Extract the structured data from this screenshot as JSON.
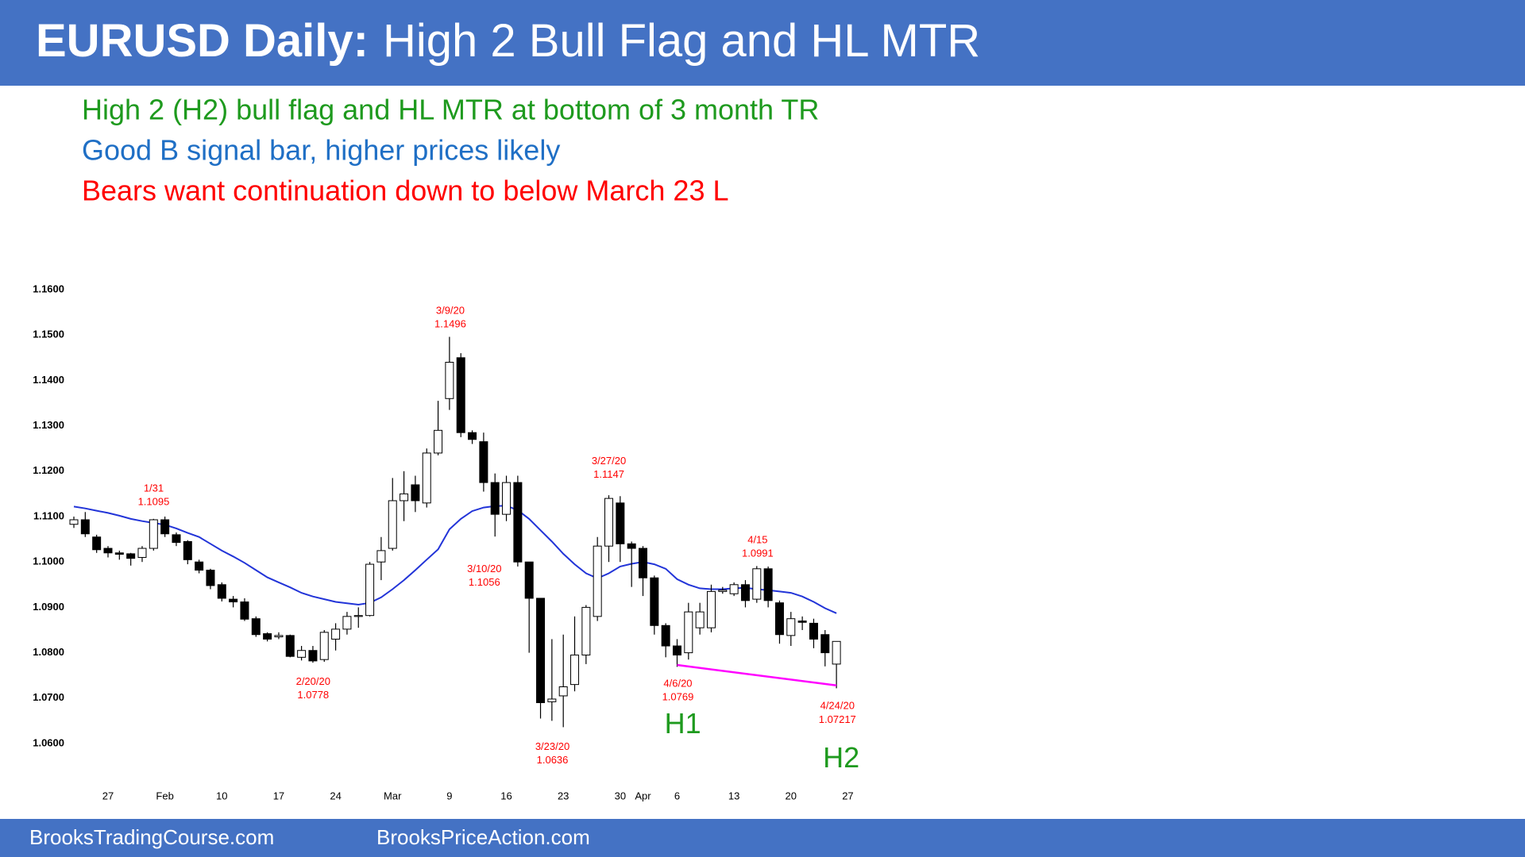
{
  "header": {
    "title_bold": "EURUSD Daily:",
    "title_rest": "High 2 Bull Flag and HL MTR"
  },
  "notes": [
    {
      "text": "High 2 (H2) bull flag and HL MTR at bottom of 3 month TR",
      "color": "#1e9a1e"
    },
    {
      "text": "Good B signal bar, higher prices likely",
      "color": "#1f6fc5"
    },
    {
      "text": "Bears want continuation down to below March 23 L",
      "color": "#ff0000"
    }
  ],
  "footer": [
    "BrooksTradingCourse.com",
    "BrooksPriceAction.com"
  ],
  "chart_data": {
    "type": "candlestick",
    "categories": [
      null,
      null,
      null,
      "27",
      null,
      null,
      null,
      null,
      "Feb",
      null,
      null,
      null,
      null,
      "10",
      null,
      null,
      null,
      null,
      "17",
      null,
      null,
      null,
      null,
      "24",
      null,
      null,
      null,
      null,
      "Mar",
      null,
      null,
      null,
      null,
      "9",
      null,
      null,
      null,
      null,
      "16",
      null,
      null,
      null,
      null,
      "23",
      null,
      null,
      null,
      null,
      "30",
      null,
      "Apr",
      null,
      null,
      "6",
      null,
      null,
      null,
      null,
      "13",
      null,
      null,
      null,
      null,
      "20",
      null,
      null,
      null,
      null,
      "27"
    ],
    "open": [
      1.1083,
      1.1093,
      1.1055,
      1.103,
      1.102,
      1.1018,
      1.101,
      1.103,
      1.1093,
      1.106,
      1.1045,
      1.1,
      1.0982,
      1.095,
      1.0918,
      1.0912,
      1.0875,
      1.0842,
      1.0835,
      1.0838,
      1.079,
      1.0805,
      1.0785,
      1.083,
      1.0852,
      1.088,
      1.0882,
      1.1,
      1.103,
      1.1135,
      1.117,
      1.113,
      1.124,
      1.136,
      1.145,
      1.1285,
      1.1265,
      1.1175,
      1.1105,
      1.1175,
      1.1,
      1.092,
      1.0692,
      1.0705,
      1.073,
      1.0795,
      1.088,
      1.1035,
      1.113,
      1.104,
      1.103,
      1.0965,
      1.086,
      1.0815,
      1.08,
      1.0855,
      1.0855,
      1.0935,
      1.093,
      1.095,
      1.0918,
      1.0985,
      1.091,
      1.0838,
      1.087,
      1.0865,
      1.084,
      1.0775,
      null
    ],
    "high": [
      1.11,
      1.111,
      1.106,
      1.1035,
      1.1025,
      1.102,
      1.1035,
      1.1095,
      1.11,
      1.1065,
      1.1048,
      1.1005,
      1.0985,
      1.0955,
      1.0925,
      1.092,
      1.088,
      1.0845,
      1.0845,
      1.084,
      1.0815,
      1.0815,
      1.085,
      1.0865,
      1.089,
      1.09,
      1.1,
      1.1055,
      1.1185,
      1.12,
      1.119,
      1.125,
      1.1355,
      1.1496,
      1.146,
      1.129,
      1.1285,
      1.1195,
      1.119,
      1.119,
      1.1,
      1.092,
      1.083,
      1.084,
      1.088,
      1.0905,
      1.1055,
      1.1147,
      1.1145,
      1.1045,
      1.1035,
      1.097,
      1.0865,
      1.083,
      1.091,
      1.091,
      1.095,
      1.0945,
      1.0955,
      1.096,
      1.0991,
      1.099,
      1.0915,
      1.089,
      1.088,
      1.0875,
      1.085,
      1.0825,
      null
    ],
    "low": [
      1.1075,
      1.1055,
      1.102,
      1.101,
      1.1005,
      1.0992,
      1.1,
      1.1025,
      1.1055,
      1.1035,
      1.0995,
      1.0975,
      1.094,
      1.0913,
      1.09,
      1.087,
      1.0835,
      1.0825,
      1.083,
      1.079,
      1.0783,
      1.0778,
      1.078,
      1.0805,
      1.084,
      1.0855,
      1.088,
      1.096,
      1.1025,
      1.109,
      1.111,
      1.112,
      1.1235,
      1.1335,
      1.1275,
      1.126,
      1.1155,
      1.1056,
      1.109,
      1.099,
      1.08,
      1.0655,
      1.065,
      1.0636,
      1.0715,
      1.0775,
      1.087,
      1.1,
      1.1,
      1.0945,
      1.0925,
      1.084,
      1.079,
      1.0769,
      1.0785,
      1.084,
      1.0845,
      1.093,
      1.0925,
      1.09,
      1.091,
      1.09,
      1.082,
      1.0815,
      1.085,
      1.081,
      1.077,
      1.07217,
      null
    ],
    "close": [
      1.1093,
      1.1062,
      1.1027,
      1.102,
      1.1017,
      1.1008,
      1.103,
      1.1093,
      1.1062,
      1.1043,
      1.1005,
      1.0982,
      1.0948,
      1.092,
      1.0912,
      1.0874,
      1.084,
      1.083,
      1.0838,
      1.0792,
      1.0805,
      1.0782,
      1.0845,
      1.0852,
      1.088,
      1.0882,
      1.0995,
      1.1025,
      1.1135,
      1.115,
      1.1135,
      1.124,
      1.129,
      1.144,
      1.1285,
      1.127,
      1.1175,
      1.1105,
      1.1175,
      1.1,
      1.092,
      1.069,
      1.0698,
      1.0725,
      1.0795,
      1.09,
      1.1035,
      1.114,
      1.104,
      1.103,
      1.0965,
      1.086,
      1.0815,
      1.0795,
      1.089,
      1.089,
      1.0935,
      1.0938,
      1.095,
      1.0915,
      1.0985,
      1.0915,
      1.084,
      1.0875,
      1.0867,
      1.083,
      1.08,
      1.0825,
      null
    ],
    "up_color": "#ffffff",
    "down_color": "#000000",
    "moving_average": {
      "color": "#2234d8",
      "values": [
        1.1122,
        1.1118,
        1.1113,
        1.1108,
        1.1102,
        1.1095,
        1.109,
        1.1086,
        1.1082,
        1.1074,
        1.1064,
        1.1055,
        1.104,
        1.1025,
        1.1012,
        1.0998,
        1.0982,
        1.0966,
        1.0955,
        1.0944,
        1.0932,
        1.0924,
        1.0918,
        1.0912,
        1.0909,
        1.0906,
        1.091,
        1.0922,
        1.094,
        1.096,
        1.0982,
        1.1005,
        1.1028,
        1.1072,
        1.1095,
        1.1112,
        1.112,
        1.1123,
        1.1124,
        1.1114,
        1.1095,
        1.107,
        1.1045,
        1.1018,
        1.0995,
        1.0975,
        1.0964,
        1.0975,
        1.099,
        1.0996,
        1.1,
        1.0995,
        1.0985,
        1.0962,
        1.095,
        1.0942,
        1.094,
        1.094,
        1.0942,
        1.0943,
        1.094,
        1.0938,
        1.0935,
        1.0932,
        1.0924,
        1.0912,
        1.0898,
        1.0887,
        null
      ]
    },
    "trendline": {
      "color": "#ff00ff",
      "x": [
        53,
        67
      ],
      "values": [
        1.0773,
        1.0728
      ]
    },
    "ylim": [
      1.06,
      1.16
    ],
    "yticks": [
      {
        "value": 1.06,
        "label": "1.0600"
      },
      {
        "value": 1.07,
        "label": "1.0700"
      },
      {
        "value": 1.08,
        "label": "1.0800"
      },
      {
        "value": 1.09,
        "label": "1.0900"
      },
      {
        "value": 1.1,
        "label": "1.1000"
      },
      {
        "value": 1.11,
        "label": "1.1100"
      },
      {
        "value": 1.12,
        "label": "1.1200"
      },
      {
        "value": 1.13,
        "label": "1.1300"
      },
      {
        "value": 1.14,
        "label": "1.1400"
      },
      {
        "value": 1.15,
        "label": "1.1500"
      },
      {
        "value": 1.16,
        "label": "1.1600"
      }
    ],
    "grid": false,
    "annotations": [
      {
        "date": "1/31",
        "price": 1.1095
      },
      {
        "date": "2/20/20",
        "price": 1.0778
      },
      {
        "date": "3/9/20",
        "price": 1.1496
      },
      {
        "date": "3/10/20",
        "price": 1.1056
      },
      {
        "date": "3/23/20",
        "price": 1.0636
      },
      {
        "date": "3/27/20",
        "price": 1.1147
      },
      {
        "date": "4/6/20",
        "price": 1.0769
      },
      {
        "date": "4/15",
        "price": 1.0991
      },
      {
        "date": "4/24/20",
        "price": 1.07217
      }
    ],
    "signals": [
      "H1",
      "H2"
    ],
    "signal_color": "#1e9a1e"
  }
}
